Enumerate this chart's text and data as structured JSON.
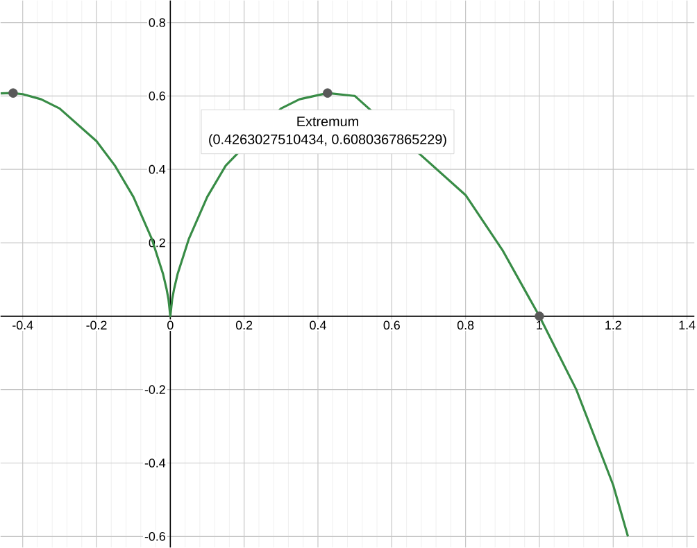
{
  "chart_data": {
    "type": "line",
    "xlim": [
      -0.46,
      1.42
    ],
    "ylim": [
      -0.63,
      0.86
    ],
    "xticks": [
      -0.4,
      -0.2,
      0,
      0.2,
      0.4,
      0.6,
      0.8,
      1,
      1.2,
      1.4
    ],
    "yticks": [
      -0.6,
      -0.4,
      -0.2,
      0.2,
      0.4,
      0.6,
      0.8
    ],
    "grid": true,
    "series": [
      {
        "color": "#388c46",
        "marker": "none",
        "line_style": "solid",
        "x": [
          -0.46,
          -0.43,
          -0.4,
          -0.35,
          -0.3,
          -0.2,
          -0.15,
          -0.1,
          -0.05,
          -0.02,
          -0.01,
          -0.005,
          0,
          0.005,
          0.01,
          0.02,
          0.05,
          0.1,
          0.15,
          0.3,
          0.35,
          0.426,
          0.5,
          0.8,
          0.9,
          1,
          1.1,
          1.2,
          1.24
        ],
        "values": [
          0.607,
          0.608,
          0.605,
          0.591,
          0.566,
          0.477,
          0.41,
          0.325,
          0.21,
          0.116,
          0.073,
          0.046,
          0,
          0.046,
          0.073,
          0.116,
          0.21,
          0.325,
          0.41,
          0.566,
          0.591,
          0.608,
          0.6,
          0.33,
          0.18,
          0,
          -0.2,
          -0.46,
          -0.6
        ]
      },
      {
        "type": "scatter",
        "color": "#595959",
        "marker": "circle",
        "x": [
          -0.426,
          0.426,
          1
        ],
        "values": [
          0.608,
          0.608,
          0
        ]
      }
    ],
    "annotations": [
      {
        "text": "Extremum",
        "x": 0.4263027510434,
        "y": 0.6080367865229
      },
      {
        "text": "(0.4263027510434, 0.6080367865229)",
        "x": 0.4263027510434,
        "y": 0.6080367865229
      }
    ]
  }
}
